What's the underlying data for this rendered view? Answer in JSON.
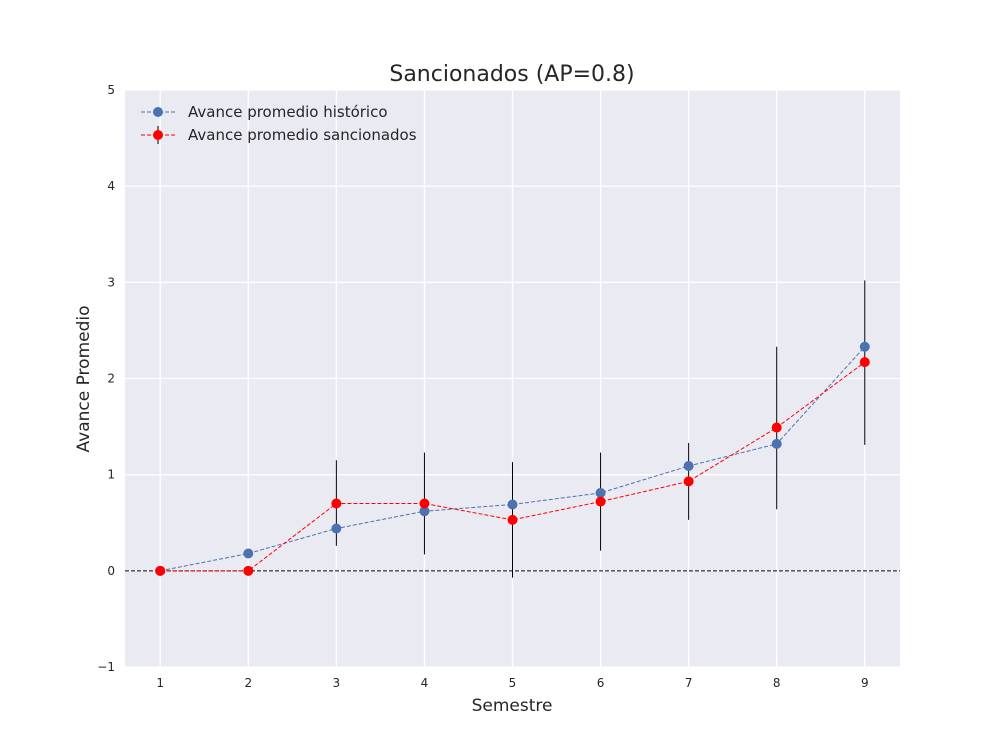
{
  "chart_data": {
    "type": "line",
    "title": "Sancionados (AP=0.8)",
    "xlabel": "Semestre",
    "ylabel": "Avance Promedio",
    "xlim": [
      0.6,
      9.4
    ],
    "ylim": [
      -1,
      5
    ],
    "x_ticks": [
      "1",
      "2",
      "3",
      "4",
      "5",
      "6",
      "7",
      "8",
      "9"
    ],
    "y_ticks": [
      "−1",
      "0",
      "1",
      "2",
      "3",
      "4",
      "5"
    ],
    "x": [
      1,
      2,
      3,
      4,
      5,
      6,
      7,
      8,
      9
    ],
    "grid": true,
    "legend_position": "upper-left",
    "reference_line": {
      "y": 0,
      "style": "dashed",
      "color": "#000000"
    },
    "series": [
      {
        "name": "Avance promedio histórico",
        "color": "#4c72b0",
        "values": [
          0.0,
          0.18,
          0.44,
          0.62,
          0.69,
          0.81,
          1.09,
          1.32,
          2.33
        ]
      },
      {
        "name": "Avance promedio sancionados",
        "color": "#ff0000",
        "values": [
          0.0,
          0.0,
          0.7,
          0.7,
          0.53,
          0.72,
          0.93,
          1.49,
          2.17
        ],
        "error_low": [
          0.0,
          0.0,
          0.26,
          0.17,
          -0.07,
          0.21,
          0.53,
          0.64,
          1.31
        ],
        "error_high": [
          0.0,
          0.0,
          1.15,
          1.23,
          1.13,
          1.23,
          1.33,
          2.33,
          3.02
        ]
      }
    ]
  }
}
